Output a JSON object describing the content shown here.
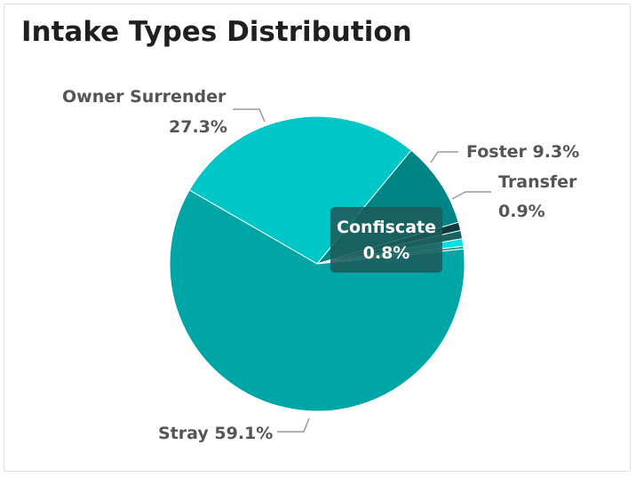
{
  "chart_data": {
    "type": "pie",
    "title": "Intake Types Distribution",
    "slices": [
      {
        "name": "Owner Surrender",
        "value": 27.3,
        "label": "27.3%",
        "color": "#00c7c7"
      },
      {
        "name": "Foster",
        "value": 9.3,
        "label": "9.3%",
        "color": "#008484"
      },
      {
        "name": "Transfer",
        "value": 0.9,
        "label": "0.9%",
        "color": "#0e3b3b"
      },
      {
        "name": "",
        "value": 0.9,
        "label": "",
        "color": "#1a6363"
      },
      {
        "name": "Confiscate",
        "value": 0.8,
        "label": "0.8%",
        "color": "#00e0e0"
      },
      {
        "name": "",
        "value": 0.3,
        "label": "",
        "color": "#2a9a9a"
      },
      {
        "name": "Stray",
        "value": 59.1,
        "label": "59.1%",
        "color": "#00a6a6"
      }
    ],
    "tooltip": {
      "name": "Confiscate",
      "value": "0.8%"
    }
  }
}
